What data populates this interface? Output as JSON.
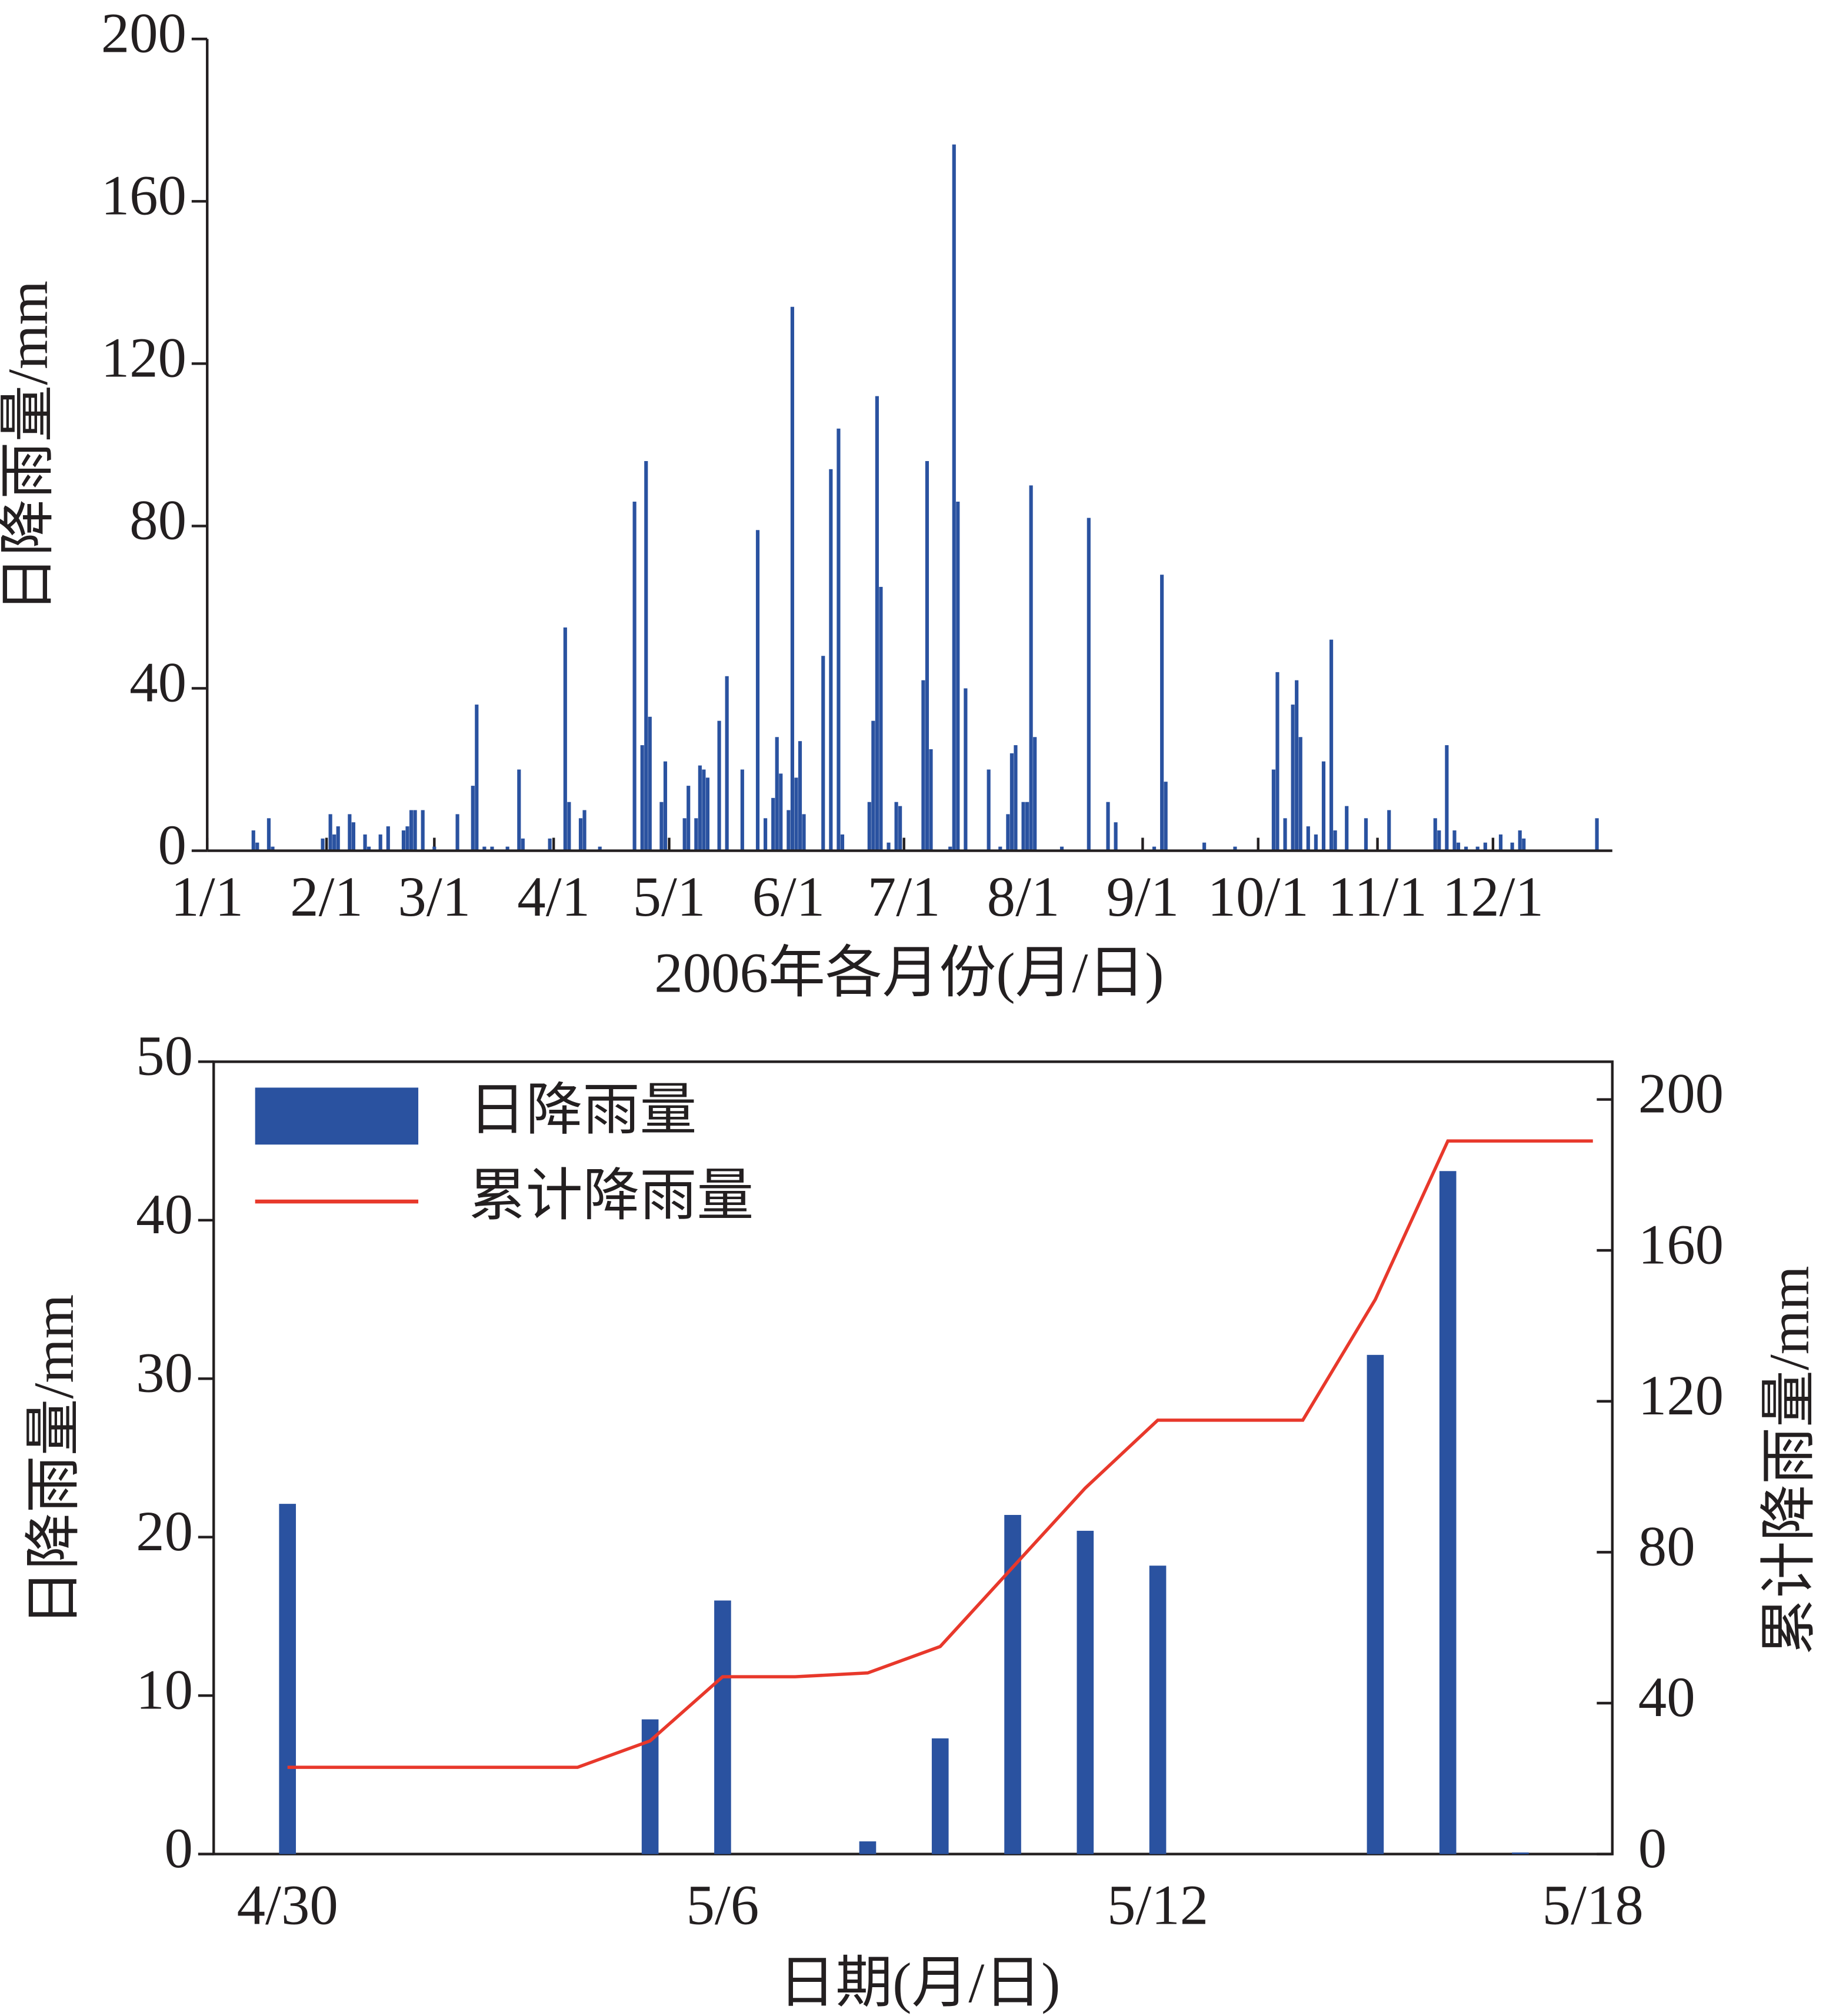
{
  "chart_data": [
    {
      "type": "bar",
      "xlabel": "2006年各月份(月/日)",
      "ylabel": "日降雨量/mm",
      "x": [
        13,
        14,
        17,
        18,
        31,
        33,
        34,
        35,
        38,
        39,
        42,
        43,
        46,
        48,
        52,
        53,
        54,
        55,
        57,
        60,
        66,
        70,
        71,
        73,
        75,
        79,
        82,
        83,
        90,
        94,
        95,
        98,
        99,
        103,
        112,
        114,
        115,
        116,
        119,
        120,
        125,
        126,
        128,
        129,
        130,
        131,
        134,
        136,
        140,
        144,
        146,
        148,
        149,
        150,
        152,
        153,
        154,
        155,
        156,
        161,
        163,
        165,
        166,
        173,
        174,
        175,
        176,
        178,
        180,
        181,
        187,
        188,
        189,
        194,
        195,
        196,
        198,
        204,
        207,
        209,
        210,
        211,
        213,
        214,
        215,
        216,
        223,
        230,
        235,
        237,
        247,
        249,
        250,
        260,
        268,
        278,
        279,
        281,
        283,
        284,
        285,
        287,
        289,
        291,
        293,
        294,
        297,
        302,
        308,
        320,
        321,
        323,
        325,
        326,
        328,
        331,
        333,
        337,
        340,
        342,
        343,
        362
      ],
      "values": [
        5,
        2,
        8,
        1,
        3,
        9,
        4,
        6,
        9,
        7,
        4,
        1,
        4,
        6,
        5,
        6,
        10,
        10,
        10,
        1,
        9,
        16,
        36,
        1,
        1,
        1,
        20,
        3,
        3,
        55,
        12,
        8,
        10,
        1,
        86,
        26,
        96,
        33,
        12,
        22,
        8,
        16,
        8,
        21,
        20,
        18,
        32,
        43,
        20,
        79,
        8,
        13,
        28,
        19,
        10,
        134,
        18,
        27,
        9,
        48,
        94,
        104,
        4,
        12,
        32,
        112,
        65,
        2,
        12,
        11,
        42,
        96,
        25,
        1,
        174,
        86,
        40,
        20,
        1,
        9,
        24,
        26,
        12,
        12,
        90,
        28,
        1,
        82,
        12,
        7,
        1,
        68,
        17,
        2,
        1,
        20,
        44,
        8,
        36,
        42,
        28,
        6,
        4,
        22,
        52,
        5,
        11,
        8,
        10,
        8,
        5,
        26,
        5,
        2,
        1,
        1,
        2,
        4,
        2,
        5,
        3,
        8
      ],
      "color": "#2a52a0",
      "xlim": [
        1,
        366
      ],
      "xticks": [
        {
          "value": 1,
          "label": "1/1"
        },
        {
          "value": 32,
          "label": "2/1"
        },
        {
          "value": 60,
          "label": "3/1"
        },
        {
          "value": 91,
          "label": "4/1"
        },
        {
          "value": 121,
          "label": "5/1"
        },
        {
          "value": 152,
          "label": "6/1"
        },
        {
          "value": 182,
          "label": "7/1"
        },
        {
          "value": 213,
          "label": "8/1"
        },
        {
          "value": 244,
          "label": "9/1"
        },
        {
          "value": 274,
          "label": "10/1"
        },
        {
          "value": 305,
          "label": "11/1"
        },
        {
          "value": 335,
          "label": "12/1"
        }
      ],
      "ylim": [
        0,
        200
      ],
      "yticks": [
        0,
        40,
        80,
        120,
        160,
        200
      ]
    },
    {
      "type": "combo",
      "xlabel": "日期(月/日)",
      "ylabel": "日降雨量/mm",
      "y2label": "累计降雨量/mm",
      "categories": [
        "4/30",
        null,
        null,
        null,
        null,
        null,
        "5/6",
        null,
        null,
        null,
        null,
        null,
        "5/12",
        null,
        null,
        null,
        null,
        null,
        "5/18"
      ],
      "series": [
        {
          "name": "日降雨量",
          "color": "#2a52a0",
          "kind": "bar",
          "values": [
            22.1,
            0,
            0,
            0,
            0,
            8.5,
            16,
            0,
            0.8,
            7.3,
            21.4,
            20.4,
            18.2,
            0,
            0,
            31.5,
            43.1,
            0.1,
            0
          ]
        },
        {
          "name": "累计降雨量",
          "color": "#e8382b",
          "kind": "line",
          "axis": "y2",
          "values": [
            23,
            23,
            23,
            23,
            23,
            30,
            47,
            47,
            48,
            55,
            76,
            97,
            115,
            115,
            115,
            147,
            189,
            189,
            189
          ]
        }
      ],
      "ylim": [
        0,
        50
      ],
      "yticks": [
        0,
        10,
        20,
        30,
        40,
        50
      ],
      "y2lim": [
        0,
        210
      ],
      "y2ticks": [
        0,
        40,
        80,
        120,
        160,
        200
      ],
      "legend": "upper left"
    }
  ]
}
